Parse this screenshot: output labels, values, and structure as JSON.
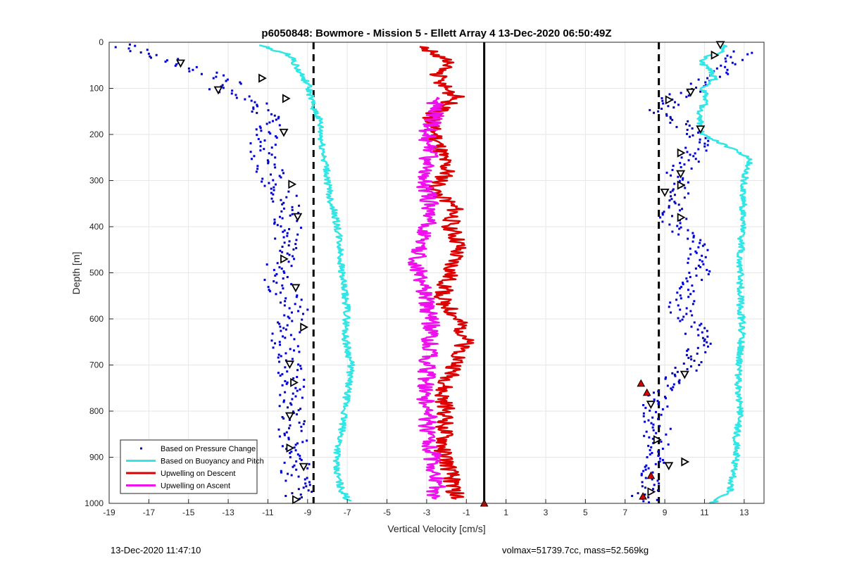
{
  "figure": {
    "footer_left": "13-Dec-2020 11:47:10",
    "footer_right": "volmax=51739.7cc, mass=52.569kg"
  },
  "chart_data": {
    "type": "line",
    "title": "p6050848: Bowmore - Mission 5 - Ellett Array 4 13-Dec-2020 06:50:49Z",
    "xlabel": "Vertical Velocity [cm/s]",
    "ylabel": "Depth [m]",
    "xlim": [
      -19,
      14
    ],
    "ylim": [
      0,
      1000
    ],
    "y_reversed": true,
    "grid": true,
    "x_ticks": [
      -19,
      -17,
      -15,
      -13,
      -11,
      -9,
      -7,
      -5,
      -3,
      -1,
      1,
      3,
      5,
      7,
      9,
      11,
      13
    ],
    "y_ticks": [
      0,
      100,
      200,
      300,
      400,
      500,
      600,
      700,
      800,
      900,
      1000
    ],
    "legend_position": "bottom-left",
    "legend": [
      {
        "label": "Based on Pressure Change",
        "color": "#0000cc",
        "style": "dot"
      },
      {
        "label": "Based on Buoyancy and Pitch",
        "color": "#33e6e6",
        "style": "line"
      },
      {
        "label": "Upwelling on Descent",
        "color": "#dd0000",
        "style": "line"
      },
      {
        "label": "Upwelling on Ascent",
        "color": "#ee11ee",
        "style": "line"
      }
    ],
    "reference_lines": {
      "dashed_x": [
        -8.7,
        8.7
      ],
      "solid_x": [
        -0.1
      ]
    },
    "series": [
      {
        "name": "Based on Pressure Change",
        "role": "descent",
        "color": "#0000cc",
        "x": [
          -18.5,
          -17,
          -15.5,
          -12.5,
          -13.5,
          -11.5,
          -11,
          -11.2,
          -11.3,
          -10.8,
          -10.2,
          -10,
          -10,
          -10.3,
          -10.5,
          -10.4,
          -9.5,
          -10,
          -10.2,
          -10,
          -9.8,
          -9.7,
          -9.9,
          -9.6,
          -9.8,
          -9.6,
          -9.4,
          -9.7,
          -9.5,
          -9.4
        ],
        "y": [
          5,
          25,
          45,
          90,
          105,
          130,
          165,
          210,
          250,
          290,
          330,
          370,
          420,
          470,
          500,
          540,
          580,
          620,
          650,
          690,
          720,
          750,
          780,
          810,
          840,
          870,
          900,
          930,
          960,
          990
        ]
      },
      {
        "name": "Based on Pressure Change",
        "role": "ascent",
        "color": "#0000cc",
        "x": [
          13,
          12,
          11,
          10,
          9.2,
          8.8,
          10.5,
          10.8,
          10.2,
          9.8,
          9.7,
          9.5,
          9.4,
          10.2,
          10.8,
          10.8,
          9.8,
          9.8,
          10.5,
          10.8,
          10.3,
          9.6,
          8.8,
          8.5,
          8.6,
          8.6,
          8.5,
          8.4,
          8.2,
          8.0,
          8.2
        ],
        "y": [
          20,
          60,
          90,
          110,
          130,
          150,
          190,
          220,
          250,
          280,
          310,
          340,
          380,
          420,
          460,
          500,
          540,
          580,
          620,
          660,
          700,
          730,
          760,
          790,
          820,
          860,
          900,
          930,
          960,
          990,
          998
        ]
      },
      {
        "name": "Based on Buoyancy and Pitch",
        "role": "descent",
        "color": "#33e6e6",
        "x": [
          -11.5,
          -9.8,
          -9.5,
          -9,
          -8.8,
          -8.4,
          -8.3,
          -8.1,
          -8.0,
          -7.9,
          -7.6,
          -7.4,
          -7.3,
          -7.2,
          -7.0,
          -7.1,
          -6.8,
          -7.0,
          -7.2,
          -7.4,
          -7.6,
          -7.3,
          -7.0,
          -6.8
        ],
        "y": [
          5,
          30,
          60,
          90,
          130,
          170,
          220,
          260,
          300,
          330,
          380,
          430,
          480,
          530,
          580,
          640,
          700,
          760,
          820,
          870,
          920,
          970,
          990,
          995
        ]
      },
      {
        "name": "Based on Buoyancy and Pitch",
        "role": "ascent",
        "color": "#33e6e6",
        "x": [
          11.4,
          12.3,
          12.6,
          12.6,
          12.8,
          12.7,
          12.8,
          12.9,
          12.8,
          12.8,
          12.9,
          13,
          13.3,
          10.9,
          10.7,
          11.1,
          11.0,
          10.9,
          11.5,
          11.3,
          10.7,
          11.8,
          12.0
        ],
        "y": [
          1000,
          970,
          900,
          860,
          800,
          730,
          670,
          620,
          560,
          480,
          400,
          300,
          250,
          200,
          150,
          130,
          110,
          100,
          80,
          60,
          40,
          20,
          5
        ]
      },
      {
        "name": "Upwelling on Descent",
        "color": "#dd0000",
        "x": [
          -3.2,
          -2,
          -2.5,
          -1.5,
          -2.8,
          -2.6,
          -2.3,
          -2.0,
          -2.6,
          -1.6,
          -1.8,
          -1.4,
          -1.7,
          -2.0,
          -2.2,
          -1.5,
          -1.0,
          -1.3,
          -1.8,
          -2.3,
          -2.0,
          -2.2,
          -1.8,
          -1.5
        ],
        "y": [
          10,
          40,
          80,
          120,
          160,
          200,
          240,
          280,
          320,
          360,
          400,
          440,
          480,
          520,
          560,
          600,
          640,
          680,
          720,
          760,
          800,
          880,
          940,
          990
        ]
      },
      {
        "name": "Upwelling on Ascent",
        "color": "#ee11ee",
        "x": [
          -2.6,
          -2.5,
          -2.6,
          -2.8,
          -3.0,
          -2.9,
          -3.2,
          -3.0,
          -2.9,
          -2.8,
          -2.8,
          -3.0,
          -3.2,
          -3.5,
          -3.4,
          -3.0,
          -2.8,
          -3.0,
          -3.2,
          -2.8,
          -3.0,
          -2.6,
          -2.5
        ],
        "y": [
          990,
          960,
          920,
          880,
          840,
          800,
          760,
          720,
          680,
          640,
          600,
          560,
          520,
          480,
          440,
          400,
          360,
          320,
          280,
          240,
          200,
          160,
          120
        ]
      }
    ],
    "markers": {
      "color": "#000000",
      "points": [
        {
          "x": -15.4,
          "y": 45
        },
        {
          "x": -11.3,
          "y": 78
        },
        {
          "x": -13.5,
          "y": 103
        },
        {
          "x": -10.1,
          "y": 122
        },
        {
          "x": -10.2,
          "y": 195
        },
        {
          "x": -9.8,
          "y": 308
        },
        {
          "x": -9.5,
          "y": 378
        },
        {
          "x": -10.2,
          "y": 470
        },
        {
          "x": -9.6,
          "y": 532
        },
        {
          "x": -9.2,
          "y": 618
        },
        {
          "x": -9.9,
          "y": 698
        },
        {
          "x": -9.7,
          "y": 738
        },
        {
          "x": -9.9,
          "y": 810
        },
        {
          "x": -9.9,
          "y": 880
        },
        {
          "x": -9.2,
          "y": 920
        },
        {
          "x": -9.6,
          "y": 992
        },
        {
          "x": 11.8,
          "y": 5
        },
        {
          "x": 11.5,
          "y": 28
        },
        {
          "x": 10.3,
          "y": 108
        },
        {
          "x": 9.2,
          "y": 125
        },
        {
          "x": 10.8,
          "y": 188
        },
        {
          "x": 9.8,
          "y": 240
        },
        {
          "x": 9.8,
          "y": 285
        },
        {
          "x": 9.8,
          "y": 310
        },
        {
          "x": 9.0,
          "y": 325
        },
        {
          "x": 9.8,
          "y": 380
        },
        {
          "x": 10,
          "y": 720
        },
        {
          "x": 10,
          "y": 910
        },
        {
          "x": 9.2,
          "y": 918
        },
        {
          "x": 8.6,
          "y": 862
        },
        {
          "x": 8.3,
          "y": 785
        },
        {
          "x": 8.3,
          "y": 975
        }
      ],
      "red_points": [
        {
          "x": 7.8,
          "y": 740
        },
        {
          "x": 8.1,
          "y": 760
        },
        {
          "x": 8.3,
          "y": 940
        },
        {
          "x": 7.9,
          "y": 985
        },
        {
          "x": -0.1,
          "y": 1000
        }
      ]
    }
  }
}
